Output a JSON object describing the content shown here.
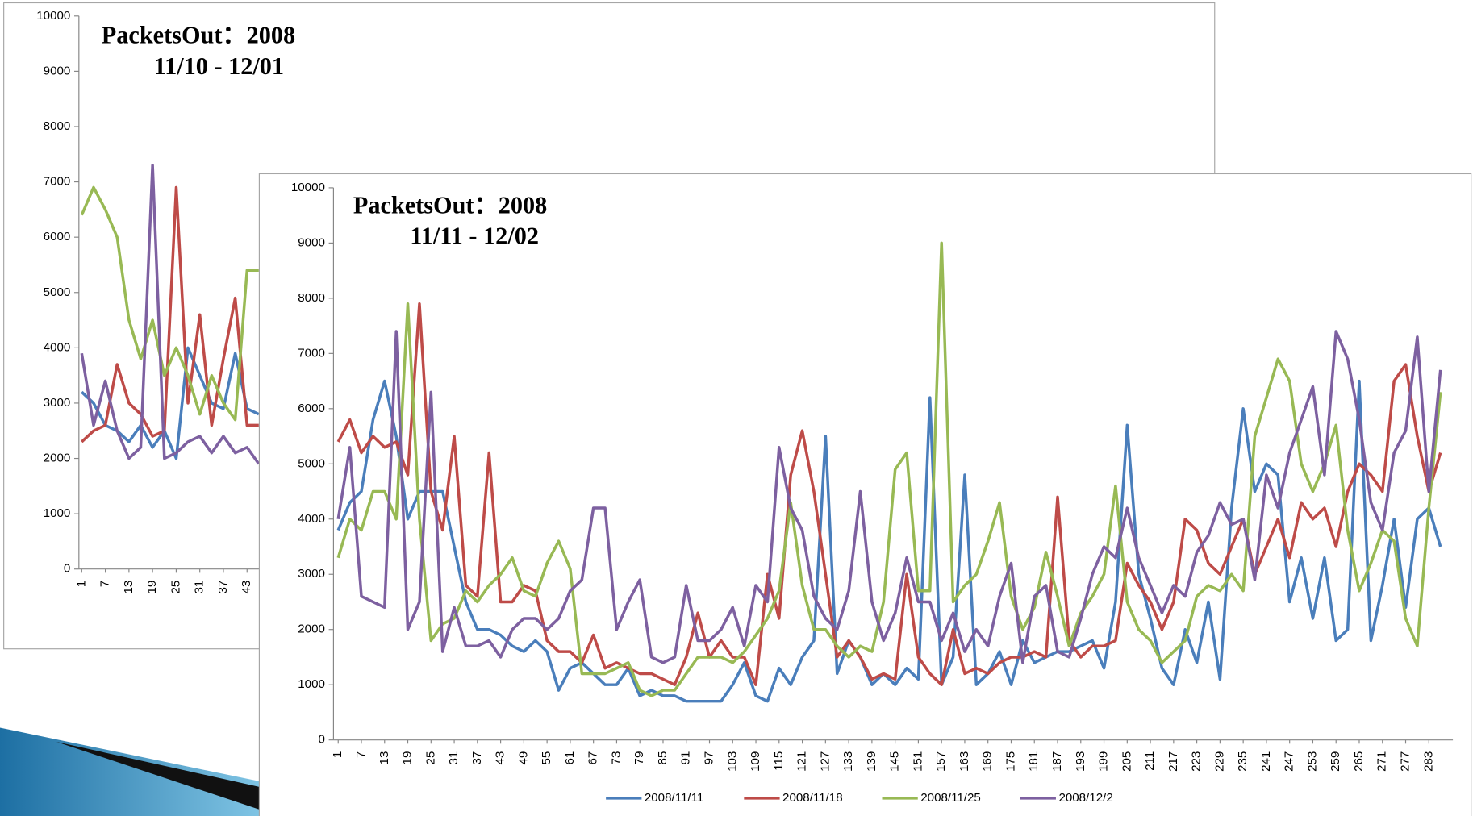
{
  "chart_data": [
    {
      "type": "line",
      "title": "PacketsOut：2008",
      "subtitle": "11/10 - 12/01",
      "x": [
        1,
        4,
        7,
        10,
        13,
        16,
        19,
        22,
        25,
        28,
        31,
        34,
        37,
        40,
        43,
        46
      ],
      "xlim": [
        1,
        288
      ],
      "xticks": [
        1,
        7,
        13,
        19,
        25,
        31,
        37,
        43
      ],
      "ylim": [
        0,
        10000
      ],
      "yticks": [
        0,
        1000,
        2000,
        3000,
        4000,
        5000,
        6000,
        7000,
        8000,
        9000,
        10000
      ],
      "series": [
        {
          "color": "#4a7ebb",
          "values": [
            3200,
            3000,
            2600,
            2500,
            2300,
            2600,
            2200,
            2500,
            2000,
            4000,
            3500,
            3000,
            2900,
            3900,
            2900,
            2800
          ]
        },
        {
          "color": "#be4b48",
          "values": [
            2300,
            2500,
            2600,
            3700,
            3000,
            2800,
            2400,
            2500,
            6900,
            3000,
            4600,
            2600,
            3800,
            4900,
            2600,
            2600
          ]
        },
        {
          "color": "#98b954",
          "values": [
            6400,
            6900,
            6500,
            6000,
            4500,
            3800,
            4500,
            3500,
            4000,
            3500,
            2800,
            3500,
            3000,
            2700,
            5400,
            5400
          ]
        },
        {
          "color": "#7d60a0",
          "values": [
            3900,
            2600,
            3400,
            2500,
            2000,
            2200,
            7300,
            2000,
            2100,
            2300,
            2400,
            2100,
            2400,
            2100,
            2200,
            1900
          ]
        }
      ]
    },
    {
      "type": "line",
      "title": "PacketsOut：2008",
      "subtitle": "11/11 - 12/02",
      "legend": "bottom",
      "x": [
        1,
        4,
        7,
        10,
        13,
        16,
        19,
        22,
        25,
        28,
        31,
        34,
        37,
        40,
        43,
        46,
        49,
        52,
        55,
        58,
        61,
        64,
        67,
        70,
        73,
        76,
        79,
        82,
        85,
        88,
        91,
        94,
        97,
        100,
        103,
        106,
        109,
        112,
        115,
        118,
        121,
        124,
        127,
        130,
        133,
        136,
        139,
        142,
        145,
        148,
        151,
        154,
        157,
        160,
        163,
        166,
        169,
        172,
        175,
        178,
        181,
        184,
        187,
        190,
        193,
        196,
        199,
        202,
        205,
        208,
        211,
        214,
        217,
        220,
        223,
        226,
        229,
        232,
        235,
        238,
        241,
        244,
        247,
        250,
        253,
        256,
        259,
        262,
        265,
        268,
        271,
        274,
        277,
        280,
        283,
        286
      ],
      "xlim": [
        1,
        288
      ],
      "xticks": [
        1,
        7,
        13,
        19,
        25,
        31,
        37,
        43,
        49,
        55,
        61,
        67,
        73,
        79,
        85,
        91,
        97,
        103,
        109,
        115,
        121,
        127,
        133,
        139,
        145,
        151,
        157,
        163,
        169,
        175,
        181,
        187,
        193,
        199,
        205,
        211,
        217,
        223,
        229,
        235,
        241,
        247,
        253,
        259,
        265,
        271,
        277,
        283
      ],
      "ylim": [
        0,
        10000
      ],
      "yticks": [
        0,
        1000,
        2000,
        3000,
        4000,
        5000,
        6000,
        7000,
        8000,
        9000,
        10000
      ],
      "series": [
        {
          "name": "2008/11/11",
          "color": "#4a7ebb",
          "values": [
            3800,
            4300,
            4500,
            5800,
            6500,
            5500,
            4000,
            4500,
            4500,
            4500,
            3500,
            2500,
            2000,
            2000,
            1900,
            1700,
            1600,
            1800,
            1600,
            900,
            1300,
            1400,
            1200,
            1000,
            1000,
            1300,
            800,
            900,
            800,
            800,
            700,
            700,
            700,
            700,
            1000,
            1400,
            800,
            700,
            1300,
            1000,
            1500,
            1800,
            5500,
            1200,
            1800,
            1500,
            1000,
            1200,
            1000,
            1300,
            1100,
            6200,
            1000,
            1500,
            4800,
            1000,
            1200,
            1600,
            1000,
            1800,
            1400,
            1500,
            1600,
            1600,
            1700,
            1800,
            1300,
            2500,
            5700,
            3000,
            2200,
            1300,
            1000,
            2000,
            1400,
            2500,
            1100,
            4200,
            6000,
            4500,
            5000,
            4800,
            2500,
            3300,
            2200,
            3300,
            1800,
            2000,
            6500,
            1800,
            2800,
            4000,
            2400,
            4000,
            4200,
            3500
          ]
        },
        {
          "name": "2008/11/18",
          "color": "#be4b48",
          "values": [
            5400,
            5800,
            5200,
            5500,
            5300,
            5400,
            4800,
            7900,
            4500,
            3800,
            5500,
            2800,
            2600,
            5200,
            2500,
            2500,
            2800,
            2700,
            1800,
            1600,
            1600,
            1400,
            1900,
            1300,
            1400,
            1300,
            1200,
            1200,
            1100,
            1000,
            1500,
            2300,
            1500,
            1800,
            1500,
            1500,
            1000,
            3000,
            2200,
            4800,
            5600,
            4500,
            3000,
            1500,
            1800,
            1500,
            1100,
            1200,
            1100,
            3000,
            1500,
            1200,
            1000,
            2000,
            1200,
            1300,
            1200,
            1400,
            1500,
            1500,
            1600,
            1500,
            4400,
            1800,
            1500,
            1700,
            1700,
            1800,
            3200,
            2800,
            2500,
            2000,
            2500,
            4000,
            3800,
            3200,
            3000,
            3500,
            4000,
            3000,
            3500,
            4000,
            3300,
            4300,
            4000,
            4200,
            3500,
            4500,
            5000,
            4800,
            4500,
            6500,
            6800,
            5500,
            4500,
            5200
          ]
        },
        {
          "name": "2008/11/25",
          "color": "#98b954",
          "values": [
            3300,
            4000,
            3800,
            4500,
            4500,
            4000,
            7900,
            4000,
            1800,
            2100,
            2200,
            2700,
            2500,
            2800,
            3000,
            3300,
            2700,
            2600,
            3200,
            3600,
            3100,
            1200,
            1200,
            1200,
            1300,
            1400,
            900,
            800,
            900,
            900,
            1200,
            1500,
            1500,
            1500,
            1400,
            1600,
            1900,
            2200,
            2700,
            4300,
            2800,
            2000,
            2000,
            1700,
            1500,
            1700,
            1600,
            2500,
            4900,
            5200,
            2700,
            2700,
            9000,
            2500,
            2800,
            3000,
            3600,
            4300,
            2600,
            2000,
            2400,
            3400,
            2600,
            1700,
            2300,
            2600,
            3000,
            4600,
            2500,
            2000,
            1800,
            1400,
            1600,
            1800,
            2600,
            2800,
            2700,
            3000,
            2700,
            5500,
            6200,
            6900,
            6500,
            5000,
            4500,
            5000,
            5700,
            3800,
            2700,
            3200,
            3800,
            3600,
            2200,
            1700,
            4200,
            6300
          ]
        },
        {
          "name": "2008/12/2",
          "color": "#7d60a0",
          "values": [
            4000,
            5300,
            2600,
            2500,
            2400,
            7400,
            2000,
            2500,
            6300,
            1600,
            2400,
            1700,
            1700,
            1800,
            1500,
            2000,
            2200,
            2200,
            2000,
            2200,
            2700,
            2900,
            4200,
            4200,
            2000,
            2500,
            2900,
            1500,
            1400,
            1500,
            2800,
            1800,
            1800,
            2000,
            2400,
            1700,
            2800,
            2500,
            5300,
            4200,
            3800,
            2600,
            2200,
            2000,
            2700,
            4500,
            2500,
            1800,
            2300,
            3300,
            2500,
            2500,
            1800,
            2300,
            1600,
            2000,
            1700,
            2600,
            3200,
            1400,
            2600,
            2800,
            1600,
            1500,
            2200,
            3000,
            3500,
            3300,
            4200,
            3300,
            2800,
            2300,
            2800,
            2600,
            3400,
            3700,
            4300,
            3900,
            4000,
            2900,
            4800,
            4200,
            5200,
            5800,
            6400,
            4800,
            7400,
            6900,
            5800,
            4300,
            3800,
            5200,
            5600,
            7300,
            4500,
            6700
          ]
        }
      ]
    }
  ]
}
